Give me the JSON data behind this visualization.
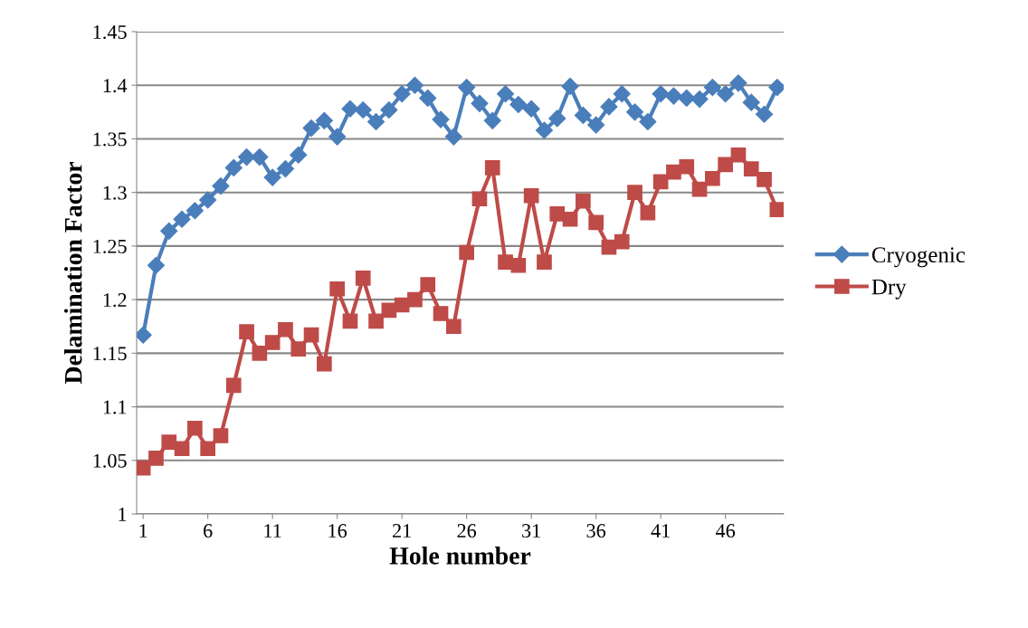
{
  "chart_data": {
    "type": "line",
    "xlabel": "Hole number",
    "ylabel": "Delamination Factor",
    "categories": [
      "1",
      null,
      null,
      null,
      null,
      "6",
      null,
      null,
      null,
      null,
      "11",
      null,
      null,
      null,
      null,
      "16",
      null,
      null,
      null,
      null,
      "21",
      null,
      null,
      null,
      null,
      "26",
      null,
      null,
      null,
      null,
      "31",
      null,
      null,
      null,
      null,
      "36",
      null,
      null,
      null,
      null,
      "41",
      null,
      null,
      null,
      null,
      "46",
      null,
      null,
      null,
      null
    ],
    "series": [
      {
        "name": "Cryogenic",
        "color": "#4a7ebb",
        "marker": "diamond",
        "values": [
          1.167,
          1.232,
          1.264,
          1.275,
          1.283,
          1.293,
          1.306,
          1.323,
          1.333,
          1.333,
          1.314,
          1.322,
          1.335,
          1.36,
          1.367,
          1.352,
          1.378,
          1.377,
          1.366,
          1.377,
          1.392,
          1.4,
          1.388,
          1.368,
          1.352,
          1.398,
          1.383,
          1.367,
          1.392,
          1.382,
          1.378,
          1.358,
          1.369,
          1.399,
          1.372,
          1.363,
          1.38,
          1.392,
          1.375,
          1.366,
          1.392,
          1.39,
          1.388,
          1.387,
          1.398,
          1.392,
          1.402,
          1.384,
          1.373,
          1.398
        ]
      },
      {
        "name": "Dry",
        "color": "#be4b48",
        "marker": "square",
        "values": [
          1.043,
          1.052,
          1.067,
          1.061,
          1.08,
          1.061,
          1.073,
          1.12,
          1.17,
          1.15,
          1.16,
          1.172,
          1.154,
          1.167,
          1.14,
          1.21,
          1.18,
          1.22,
          1.18,
          1.19,
          1.195,
          1.2,
          1.214,
          1.187,
          1.175,
          1.244,
          1.294,
          1.323,
          1.235,
          1.232,
          1.297,
          1.235,
          1.28,
          1.275,
          1.292,
          1.272,
          1.249,
          1.254,
          1.3,
          1.281,
          1.31,
          1.319,
          1.324,
          1.303,
          1.313,
          1.326,
          1.335,
          1.322,
          1.312,
          1.284
        ]
      }
    ],
    "ylim": [
      1,
      1.45
    ],
    "yticks": [
      1,
      1.05,
      1.1,
      1.15,
      1.2,
      1.25,
      1.3,
      1.35,
      1.4,
      1.45
    ],
    "grid": "y",
    "legend": "right",
    "line_style": "solid"
  }
}
